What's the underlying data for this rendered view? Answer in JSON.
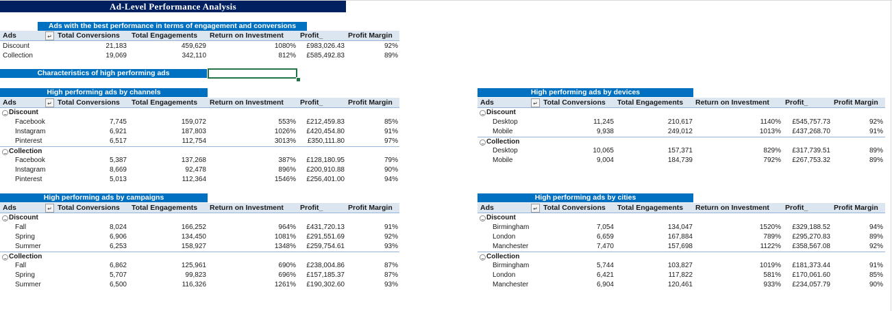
{
  "title": "Ad-Level Performance Analysis",
  "accent_colors": {
    "title_bg": "#002060",
    "banner_bg": "#0070c0",
    "header_bg": "#dce6f1"
  },
  "filter_icon": "sort-filter-icon",
  "expand_icon": "collapse-minus-icon",
  "best": {
    "banner": "Ads with the best performance in terms of engagement and conversions",
    "headers": [
      "Ads",
      "Total Conversions",
      "Total Engagements",
      "Return on Investment",
      "Profit_",
      "Profit Margin"
    ],
    "rows": [
      {
        "ad": "Discount",
        "conv": "21,183",
        "eng": "459,629",
        "roi": "1080%",
        "profit": "£983,026.43",
        "margin": "92%"
      },
      {
        "ad": "Collection",
        "conv": "19,069",
        "eng": "342,110",
        "roi": "812%",
        "profit": "£585,492.83",
        "margin": "89%"
      }
    ]
  },
  "characteristics_banner": "Characteristics of high performing ads",
  "channels": {
    "banner": "High performing ads by channels",
    "headers": [
      "Ads",
      "Total Conversions",
      "Total Engagements",
      "Return on Investment",
      "Profit_",
      "Profit Margin"
    ],
    "groups": [
      {
        "name": "Discount",
        "rows": [
          {
            "label": "Facebook",
            "conv": "7,745",
            "eng": "159,072",
            "roi": "553%",
            "profit": "£212,459.83",
            "margin": "85%"
          },
          {
            "label": "Instagram",
            "conv": "6,921",
            "eng": "187,803",
            "roi": "1026%",
            "profit": "£420,454.80",
            "margin": "91%"
          },
          {
            "label": "Pinterest",
            "conv": "6,517",
            "eng": "112,754",
            "roi": "3013%",
            "profit": "£350,111.80",
            "margin": "97%"
          }
        ]
      },
      {
        "name": "Collection",
        "rows": [
          {
            "label": "Facebook",
            "conv": "5,387",
            "eng": "137,268",
            "roi": "387%",
            "profit": "£128,180.95",
            "margin": "79%"
          },
          {
            "label": "Instagram",
            "conv": "8,669",
            "eng": "92,478",
            "roi": "896%",
            "profit": "£200,910.88",
            "margin": "90%"
          },
          {
            "label": "Pinterest",
            "conv": "5,013",
            "eng": "112,364",
            "roi": "1546%",
            "profit": "£256,401.00",
            "margin": "94%"
          }
        ]
      }
    ]
  },
  "campaigns": {
    "banner": "High performing ads by campaigns",
    "headers": [
      "Ads",
      "Total Conversions",
      "Total Engagements",
      "Return on Investment",
      "Profit_",
      "Profit Margin"
    ],
    "groups": [
      {
        "name": "Discount",
        "rows": [
          {
            "label": "Fall",
            "conv": "8,024",
            "eng": "166,252",
            "roi": "964%",
            "profit": "£431,720.13",
            "margin": "91%"
          },
          {
            "label": "Spring",
            "conv": "6,906",
            "eng": "134,450",
            "roi": "1081%",
            "profit": "£291,551.69",
            "margin": "92%"
          },
          {
            "label": "Summer",
            "conv": "6,253",
            "eng": "158,927",
            "roi": "1348%",
            "profit": "£259,754.61",
            "margin": "93%"
          }
        ]
      },
      {
        "name": "Collection",
        "rows": [
          {
            "label": "Fall",
            "conv": "6,862",
            "eng": "125,961",
            "roi": "690%",
            "profit": "£238,004.86",
            "margin": "87%"
          },
          {
            "label": "Spring",
            "conv": "5,707",
            "eng": "99,823",
            "roi": "696%",
            "profit": "£157,185.37",
            "margin": "87%"
          },
          {
            "label": "Summer",
            "conv": "6,500",
            "eng": "116,326",
            "roi": "1261%",
            "profit": "£190,302.60",
            "margin": "93%"
          }
        ]
      }
    ]
  },
  "devices": {
    "banner": "High performing ads by devices",
    "headers": [
      "Ads",
      "Total Conversions",
      "Total Engagements",
      "Return on Investment",
      "Profit_",
      "Profit Margin"
    ],
    "groups": [
      {
        "name": "Discount",
        "rows": [
          {
            "label": "Desktop",
            "conv": "11,245",
            "eng": "210,617",
            "roi": "1140%",
            "profit": "£545,757.73",
            "margin": "92%"
          },
          {
            "label": "Mobile",
            "conv": "9,938",
            "eng": "249,012",
            "roi": "1013%",
            "profit": "£437,268.70",
            "margin": "91%"
          }
        ]
      },
      {
        "name": "Collection",
        "rows": [
          {
            "label": "Desktop",
            "conv": "10,065",
            "eng": "157,371",
            "roi": "829%",
            "profit": "£317,739.51",
            "margin": "89%"
          },
          {
            "label": "Mobile",
            "conv": "9,004",
            "eng": "184,739",
            "roi": "792%",
            "profit": "£267,753.32",
            "margin": "89%"
          }
        ]
      }
    ]
  },
  "cities": {
    "banner": "High performing ads by cities",
    "headers": [
      "Ads",
      "Total Conversions",
      "Total Engagements",
      "Return on Investment",
      "Profit_",
      "Profit Margin"
    ],
    "groups": [
      {
        "name": "Discount",
        "rows": [
          {
            "label": "Birmingham",
            "conv": "7,054",
            "eng": "134,047",
            "roi": "1520%",
            "profit": "£329,188.52",
            "margin": "94%"
          },
          {
            "label": "London",
            "conv": "6,659",
            "eng": "167,884",
            "roi": "789%",
            "profit": "£295,270.83",
            "margin": "89%"
          },
          {
            "label": "Manchester",
            "conv": "7,470",
            "eng": "157,698",
            "roi": "1122%",
            "profit": "£358,567.08",
            "margin": "92%"
          }
        ]
      },
      {
        "name": "Collection",
        "rows": [
          {
            "label": "Birmingham",
            "conv": "5,744",
            "eng": "103,827",
            "roi": "1019%",
            "profit": "£181,373.44",
            "margin": "91%"
          },
          {
            "label": "London",
            "conv": "6,421",
            "eng": "117,822",
            "roi": "581%",
            "profit": "£170,061.60",
            "margin": "85%"
          },
          {
            "label": "Manchester",
            "conv": "6,904",
            "eng": "120,461",
            "roi": "933%",
            "profit": "£234,057.79",
            "margin": "90%"
          }
        ]
      }
    ]
  }
}
